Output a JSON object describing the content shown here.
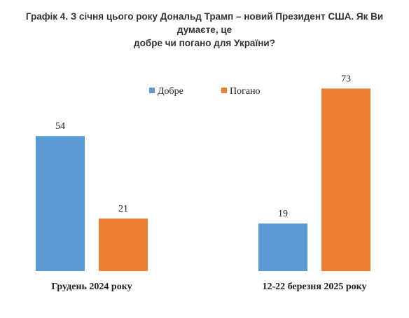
{
  "title_lines": [
    "Графік 4. З січня цього року Дональд Трамп – новий Президент США. Як Ви думаєте, це",
    "добре чи погано для України?"
  ],
  "chart_data": {
    "type": "bar",
    "categories": [
      "Грудень 2024 року",
      "12-22 березня 2025 року"
    ],
    "series": [
      {
        "name": "Добре",
        "values": [
          54,
          19
        ],
        "color": "#5B9BD5"
      },
      {
        "name": "Погано",
        "values": [
          21,
          73
        ],
        "color": "#ED7D31"
      }
    ],
    "ylim": [
      0,
      80
    ],
    "grid": false,
    "legend": "top-center"
  }
}
